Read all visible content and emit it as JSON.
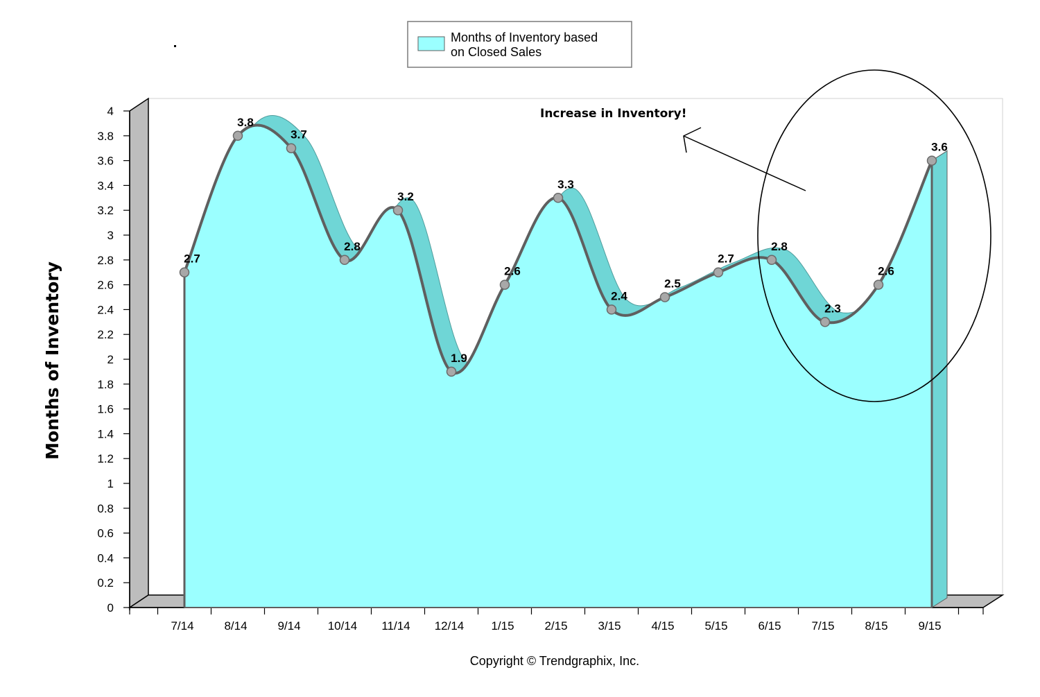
{
  "chart_data": {
    "type": "area",
    "categories": [
      "7/14",
      "8/14",
      "9/14",
      "10/14",
      "11/14",
      "12/14",
      "1/15",
      "2/15",
      "3/15",
      "4/15",
      "5/15",
      "6/15",
      "7/15",
      "8/15",
      "9/15"
    ],
    "series": [
      {
        "name": "Months of Inventory based on Closed Sales",
        "values": [
          2.7,
          3.8,
          3.7,
          2.8,
          3.2,
          1.9,
          2.6,
          3.3,
          2.4,
          2.5,
          2.7,
          2.8,
          2.3,
          2.6,
          3.6
        ],
        "color": "#9bffff"
      }
    ],
    "y_ticks": [
      "0",
      "0.2",
      "0.4",
      "0.6",
      "0.8",
      "1",
      "1.2",
      "1.4",
      "1.6",
      "1.8",
      "2",
      "2.2",
      "2.4",
      "2.6",
      "2.8",
      "3",
      "3.2",
      "3.4",
      "3.6",
      "3.8",
      "4"
    ],
    "ylim": [
      0,
      4
    ],
    "xlabel": "",
    "ylabel": "Months of Inventory",
    "legend": {
      "position": "top-center",
      "label_line1": "Months of Inventory based",
      "label_line2": "on Closed Sales"
    },
    "annotations": {
      "text": "Increase in Inventory!",
      "highlight": "ellipse around last four months with arrow pointing up-left"
    },
    "grid": false
  },
  "copyright": "Copyright © Trendgraphix, Inc.",
  "colors": {
    "fill": "#9bffff",
    "ribbon": "#6fd6d6",
    "line": "#5f5f5f",
    "wall": "#bdbdbd",
    "marker": "#a8a8a8"
  }
}
